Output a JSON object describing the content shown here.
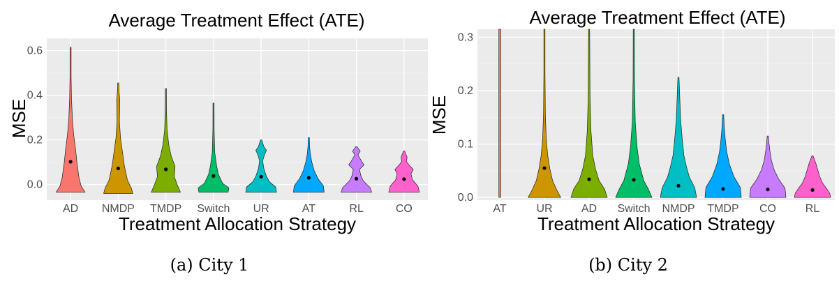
{
  "chart_data": [
    {
      "type": "violin",
      "title": "Average Treatment Effect (ATE)",
      "xlabel": "Treatment Allocation Strategy",
      "ylabel": "MSE",
      "caption": "(a) City 1",
      "ylim": [
        -0.07,
        0.655
      ],
      "yticks": [
        0.0,
        0.2,
        0.4,
        0.6
      ],
      "ytick_labels": [
        "0.0",
        "0.2",
        "0.4",
        "0.6"
      ],
      "grid": true,
      "categories": [
        "AD",
        "NMDP",
        "TMDP",
        "Switch",
        "UR",
        "AT",
        "RL",
        "CO"
      ],
      "colors": [
        "#F8766D",
        "#CD9600",
        "#7CAE00",
        "#00BE67",
        "#00BFC4",
        "#00A9FF",
        "#C77CFF",
        "#FF61CC"
      ],
      "series": [
        {
          "min": -0.035,
          "max": 0.615,
          "mean": 0.102,
          "shape": [
            [
              0.0,
              0.95
            ],
            [
              0.04,
              0.7
            ],
            [
              0.1,
              0.55
            ],
            [
              0.2,
              0.42
            ],
            [
              0.3,
              0.32
            ],
            [
              0.4,
              0.2
            ],
            [
              0.5,
              0.12
            ],
            [
              0.65,
              0.06
            ],
            [
              0.8,
              0.03
            ],
            [
              1.0,
              0.005
            ]
          ]
        },
        {
          "min": -0.04,
          "max": 0.455,
          "mean": 0.072,
          "shape": [
            [
              0.0,
              0.95
            ],
            [
              0.05,
              0.85
            ],
            [
              0.12,
              0.6
            ],
            [
              0.25,
              0.4
            ],
            [
              0.4,
              0.25
            ],
            [
              0.5,
              0.15
            ],
            [
              0.65,
              0.08
            ],
            [
              0.85,
              0.1
            ],
            [
              0.93,
              0.05
            ],
            [
              1.0,
              0.01
            ]
          ]
        },
        {
          "min": -0.035,
          "max": 0.43,
          "mean": 0.068,
          "shape": [
            [
              0.0,
              0.95
            ],
            [
              0.07,
              0.75
            ],
            [
              0.15,
              0.55
            ],
            [
              0.25,
              0.6
            ],
            [
              0.35,
              0.35
            ],
            [
              0.45,
              0.2
            ],
            [
              0.6,
              0.08
            ],
            [
              0.8,
              0.04
            ],
            [
              1.0,
              0.005
            ]
          ]
        },
        {
          "min": -0.035,
          "max": 0.365,
          "mean": 0.038,
          "shape": [
            [
              0.0,
              0.95
            ],
            [
              0.05,
              1.0
            ],
            [
              0.1,
              0.6
            ],
            [
              0.2,
              0.32
            ],
            [
              0.3,
              0.2
            ],
            [
              0.45,
              0.08
            ],
            [
              0.7,
              0.04
            ],
            [
              1.0,
              0.005
            ]
          ]
        },
        {
          "min": -0.035,
          "max": 0.2,
          "mean": 0.035,
          "shape": [
            [
              0.0,
              1.0
            ],
            [
              0.1,
              0.95
            ],
            [
              0.2,
              0.55
            ],
            [
              0.3,
              0.35
            ],
            [
              0.45,
              0.18
            ],
            [
              0.6,
              0.1
            ],
            [
              0.72,
              0.22
            ],
            [
              0.8,
              0.35
            ],
            [
              0.87,
              0.18
            ],
            [
              1.0,
              0.01
            ]
          ]
        },
        {
          "min": -0.035,
          "max": 0.21,
          "mean": 0.03,
          "shape": [
            [
              0.0,
              1.0
            ],
            [
              0.12,
              0.95
            ],
            [
              0.25,
              0.6
            ],
            [
              0.4,
              0.35
            ],
            [
              0.55,
              0.2
            ],
            [
              0.7,
              0.1
            ],
            [
              0.85,
              0.05
            ],
            [
              1.0,
              0.01
            ]
          ]
        },
        {
          "min": -0.035,
          "max": 0.17,
          "mean": 0.026,
          "shape": [
            [
              0.0,
              1.0
            ],
            [
              0.1,
              0.9
            ],
            [
              0.25,
              0.45
            ],
            [
              0.35,
              0.3
            ],
            [
              0.5,
              0.2
            ],
            [
              0.6,
              0.5
            ],
            [
              0.7,
              0.3
            ],
            [
              0.82,
              0.1
            ],
            [
              0.9,
              0.25
            ],
            [
              1.0,
              0.02
            ]
          ]
        },
        {
          "min": -0.035,
          "max": 0.15,
          "mean": 0.024,
          "shape": [
            [
              0.0,
              1.0
            ],
            [
              0.15,
              0.9
            ],
            [
              0.3,
              0.55
            ],
            [
              0.45,
              0.45
            ],
            [
              0.55,
              0.6
            ],
            [
              0.65,
              0.35
            ],
            [
              0.75,
              0.15
            ],
            [
              0.85,
              0.2
            ],
            [
              1.0,
              0.02
            ]
          ]
        }
      ]
    },
    {
      "type": "violin",
      "title": "Average Treatment Effect (ATE)",
      "xlabel": "Treatment Allocation Strategy",
      "ylabel": "MSE",
      "caption": "(b) City 2",
      "ylim": [
        -0.005,
        0.315
      ],
      "yticks": [
        0.0,
        0.1,
        0.2,
        0.3
      ],
      "ytick_labels": [
        "0.0",
        "0.1",
        "0.2",
        "0.3"
      ],
      "grid": true,
      "categories": [
        "AT",
        "UR",
        "AD",
        "Switch",
        "NMDP",
        "TMDP",
        "CO",
        "RL"
      ],
      "colors": [
        "#F8766D",
        "#CD9600",
        "#7CAE00",
        "#00BE67",
        "#00BFC4",
        "#00A9FF",
        "#C77CFF",
        "#FF61CC"
      ],
      "series": [
        {
          "min": 0.0,
          "max": 0.315,
          "mean": null,
          "shape": [
            [
              0.0,
              0.05
            ],
            [
              0.5,
              0.05
            ],
            [
              1.0,
              0.05
            ]
          ]
        },
        {
          "min": 0.0,
          "max": 0.315,
          "mean": 0.055,
          "shape": [
            [
              0.0,
              0.9
            ],
            [
              0.04,
              0.7
            ],
            [
              0.1,
              0.45
            ],
            [
              0.17,
              0.3
            ],
            [
              0.25,
              0.18
            ],
            [
              0.35,
              0.1
            ],
            [
              0.5,
              0.05
            ],
            [
              0.75,
              0.02
            ],
            [
              1.0,
              0.01
            ]
          ]
        },
        {
          "min": 0.0,
          "max": 0.315,
          "mean": 0.034,
          "shape": [
            [
              0.0,
              1.0
            ],
            [
              0.05,
              0.85
            ],
            [
              0.1,
              0.55
            ],
            [
              0.17,
              0.35
            ],
            [
              0.25,
              0.2
            ],
            [
              0.4,
              0.1
            ],
            [
              0.6,
              0.05
            ],
            [
              1.0,
              0.01
            ]
          ]
        },
        {
          "min": 0.0,
          "max": 0.315,
          "mean": 0.033,
          "shape": [
            [
              0.0,
              1.0
            ],
            [
              0.05,
              0.8
            ],
            [
              0.1,
              0.55
            ],
            [
              0.2,
              0.3
            ],
            [
              0.3,
              0.18
            ],
            [
              0.45,
              0.08
            ],
            [
              0.7,
              0.04
            ],
            [
              1.0,
              0.01
            ]
          ]
        },
        {
          "min": 0.0,
          "max": 0.225,
          "mean": 0.022,
          "shape": [
            [
              0.0,
              1.0
            ],
            [
              0.08,
              0.9
            ],
            [
              0.17,
              0.6
            ],
            [
              0.25,
              0.45
            ],
            [
              0.35,
              0.3
            ],
            [
              0.5,
              0.2
            ],
            [
              0.65,
              0.12
            ],
            [
              0.8,
              0.08
            ],
            [
              1.0,
              0.01
            ]
          ]
        },
        {
          "min": 0.0,
          "max": 0.155,
          "mean": 0.016,
          "shape": [
            [
              0.0,
              1.0
            ],
            [
              0.12,
              0.95
            ],
            [
              0.25,
              0.6
            ],
            [
              0.4,
              0.35
            ],
            [
              0.55,
              0.2
            ],
            [
              0.7,
              0.12
            ],
            [
              0.85,
              0.06
            ],
            [
              1.0,
              0.01
            ]
          ]
        },
        {
          "min": 0.0,
          "max": 0.115,
          "mean": 0.015,
          "shape": [
            [
              0.0,
              1.0
            ],
            [
              0.15,
              0.95
            ],
            [
              0.3,
              0.6
            ],
            [
              0.45,
              0.35
            ],
            [
              0.6,
              0.2
            ],
            [
              0.75,
              0.12
            ],
            [
              0.9,
              0.06
            ],
            [
              1.0,
              0.01
            ]
          ]
        },
        {
          "min": 0.0,
          "max": 0.078,
          "mean": 0.014,
          "shape": [
            [
              0.0,
              1.0
            ],
            [
              0.1,
              0.95
            ],
            [
              0.2,
              0.8
            ],
            [
              0.35,
              0.55
            ],
            [
              0.5,
              0.4
            ],
            [
              0.65,
              0.3
            ],
            [
              0.8,
              0.2
            ],
            [
              1.0,
              0.02
            ]
          ]
        }
      ]
    }
  ]
}
